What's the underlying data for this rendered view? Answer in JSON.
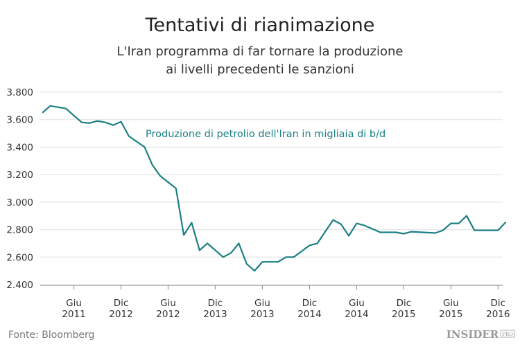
{
  "chart_data": {
    "type": "line",
    "title": "Tentativi di rianimazione",
    "subtitle": [
      "L'Iran programma di far tornare la produzione",
      "ai livelli precedenti le sanzioni"
    ],
    "annotation": "Produzione di petrolio dell'Iran in migliaia di b/d",
    "source": "Fonte: Bloomberg",
    "logo": {
      "main": "INSIDER",
      "suffix": "PRO"
    },
    "line_color": "#1b7f82",
    "ylim": [
      2400,
      3800
    ],
    "yticks": [
      "3.800",
      "3.600",
      "3.400",
      "3.200",
      "3.000",
      "2.800",
      "2.600",
      "2.400"
    ],
    "ytick_values": [
      3800,
      3600,
      3400,
      3200,
      3000,
      2800,
      2600,
      2400
    ],
    "grid": true,
    "xticks": [
      {
        "month": "Giu",
        "year": "2011"
      },
      {
        "month": "Dic",
        "year": "2012"
      },
      {
        "month": "Giu",
        "year": "2012"
      },
      {
        "month": "Dic",
        "year": "2013"
      },
      {
        "month": "Giu",
        "year": "2013"
      },
      {
        "month": "Dic",
        "year": "2014"
      },
      {
        "month": "Giu",
        "year": "2014"
      },
      {
        "month": "Dic",
        "year": "2015"
      },
      {
        "month": "Giu",
        "year": "2015"
      },
      {
        "month": "Dic",
        "year": "2016"
      }
    ],
    "series": [
      {
        "points": [
          [
            "2011-02",
            3650
          ],
          [
            "2011-03",
            3700
          ],
          [
            "2011-04",
            3690
          ],
          [
            "2011-05",
            3680
          ],
          [
            "2011-06",
            3630
          ],
          [
            "2011-07",
            3580
          ],
          [
            "2011-08",
            3575
          ],
          [
            "2011-09",
            3590
          ],
          [
            "2011-10",
            3580
          ],
          [
            "2011-11",
            3560
          ],
          [
            "2011-12",
            3585
          ],
          [
            "2012-01",
            3480
          ],
          [
            "2012-02",
            3440
          ],
          [
            "2012-03",
            3400
          ],
          [
            "2012-04",
            3270
          ],
          [
            "2012-05",
            3190
          ],
          [
            "2012-07",
            3100
          ],
          [
            "2012-08",
            2760
          ],
          [
            "2012-09",
            2850
          ],
          [
            "2012-10",
            2650
          ],
          [
            "2012-11",
            2700
          ],
          [
            "2013-01",
            2600
          ],
          [
            "2013-02",
            2630
          ],
          [
            "2013-03",
            2700
          ],
          [
            "2013-04",
            2550
          ],
          [
            "2013-05",
            2500
          ],
          [
            "2013-06",
            2565
          ],
          [
            "2013-08",
            2565
          ],
          [
            "2013-09",
            2600
          ],
          [
            "2013-10",
            2600
          ],
          [
            "2013-12",
            2685
          ],
          [
            "2014-01",
            2700
          ],
          [
            "2014-03",
            2870
          ],
          [
            "2014-04",
            2840
          ],
          [
            "2014-05",
            2755
          ],
          [
            "2014-06",
            2845
          ],
          [
            "2014-07",
            2830
          ],
          [
            "2014-09",
            2780
          ],
          [
            "2014-11",
            2780
          ],
          [
            "2014-12",
            2770
          ],
          [
            "2015-01",
            2785
          ],
          [
            "2015-04",
            2775
          ],
          [
            "2015-05",
            2795
          ],
          [
            "2015-06",
            2845
          ],
          [
            "2015-07",
            2845
          ],
          [
            "2015-08",
            2900
          ],
          [
            "2015-09",
            2795
          ],
          [
            "2015-12",
            2795
          ],
          [
            "2016-01",
            2855
          ]
        ]
      }
    ]
  }
}
